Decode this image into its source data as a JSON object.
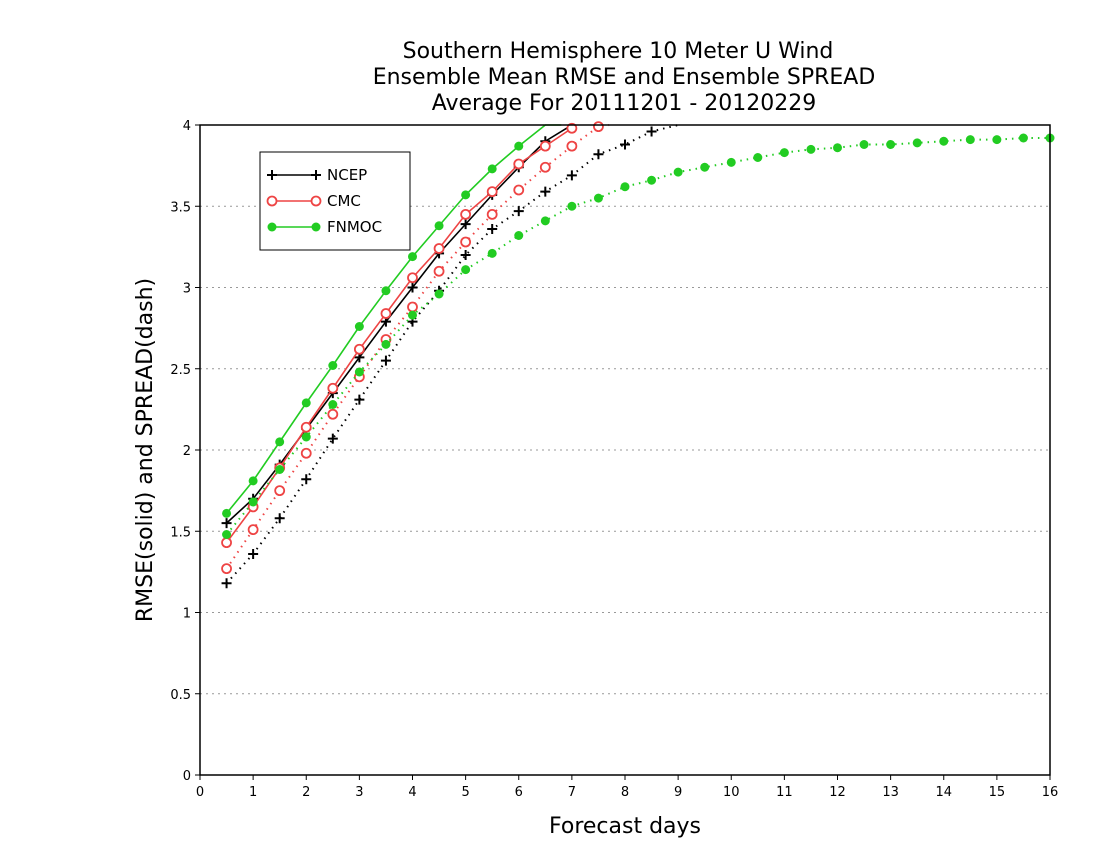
{
  "chart_data": {
    "type": "line",
    "title": [
      "Southern Hemisphere 10 Meter U Wind",
      "Ensemble Mean RMSE and Ensemble SPREAD",
      "Average For 20111201 - 20120229"
    ],
    "xlabel": "Forecast days",
    "ylabel": "RMSE(solid) and SPREAD(dash)",
    "xlim": [
      0,
      16
    ],
    "ylim": [
      0,
      4
    ],
    "xticks": [
      "0",
      "1",
      "2",
      "3",
      "4",
      "5",
      "6",
      "7",
      "8",
      "9",
      "10",
      "11",
      "12",
      "13",
      "14",
      "15",
      "16"
    ],
    "yticks": [
      "0",
      "0.5",
      "1",
      "1.5",
      "2",
      "2.5",
      "3",
      "3.5",
      "4"
    ],
    "grid": "horizontal dotted",
    "legend_position": "top-left",
    "series": [
      {
        "name": "NCEP",
        "color": "#000000",
        "marker": "plus",
        "rmse": {
          "x": [
            0.5,
            1,
            1.5,
            2,
            2.5,
            3,
            3.5,
            4,
            4.5,
            5,
            5.5,
            6,
            6.5,
            7
          ],
          "y": [
            1.55,
            1.7,
            1.91,
            2.13,
            2.35,
            2.57,
            2.79,
            3.0,
            3.21,
            3.39,
            3.57,
            3.74,
            3.9,
            4.0
          ]
        },
        "spread": {
          "x": [
            0.5,
            1,
            1.5,
            2,
            2.5,
            3,
            3.5,
            4,
            4.5,
            5,
            5.5,
            6,
            6.5,
            7,
            7.5,
            8,
            8.5,
            9
          ],
          "y": [
            1.18,
            1.36,
            1.58,
            1.82,
            2.07,
            2.31,
            2.55,
            2.79,
            2.98,
            3.2,
            3.36,
            3.47,
            3.59,
            3.69,
            3.82,
            3.88,
            3.96,
            4.0
          ]
        }
      },
      {
        "name": "CMC",
        "color": "#ee4444",
        "marker": "circle-open",
        "rmse": {
          "x": [
            0.5,
            1,
            1.5,
            2,
            2.5,
            3,
            3.5,
            4,
            4.5,
            5,
            5.5,
            6,
            6.5,
            7
          ],
          "y": [
            1.43,
            1.65,
            1.89,
            2.14,
            2.38,
            2.62,
            2.84,
            3.06,
            3.24,
            3.45,
            3.59,
            3.76,
            3.87,
            3.98
          ]
        },
        "spread": {
          "x": [
            0.5,
            1,
            1.5,
            2,
            2.5,
            3,
            3.5,
            4,
            4.5,
            5,
            5.5,
            6,
            6.5,
            7,
            7.5,
            7.7
          ],
          "y": [
            1.27,
            1.51,
            1.75,
            1.98,
            2.22,
            2.45,
            2.68,
            2.88,
            3.1,
            3.28,
            3.45,
            3.6,
            3.74,
            3.87,
            3.99,
            4.0
          ]
        }
      },
      {
        "name": "FNMOC",
        "color": "#22cc22",
        "marker": "dot",
        "rmse": {
          "x": [
            0.5,
            1,
            1.5,
            2,
            2.5,
            3,
            3.5,
            4,
            4.5,
            5,
            5.5,
            6,
            6.5,
            6.8
          ],
          "y": [
            1.61,
            1.81,
            2.05,
            2.29,
            2.52,
            2.76,
            2.98,
            3.19,
            3.38,
            3.57,
            3.73,
            3.87,
            4.0,
            4.0
          ]
        },
        "spread": {
          "x": [
            0.5,
            1,
            1.5,
            2,
            2.5,
            3,
            3.5,
            4,
            4.5,
            5,
            5.5,
            6,
            6.5,
            7,
            7.5,
            8,
            8.5,
            9,
            9.5,
            10,
            10.5,
            11,
            11.5,
            12,
            12.5,
            13,
            13.5,
            14,
            14.5,
            15,
            15.5,
            16
          ],
          "y": [
            1.48,
            1.68,
            1.88,
            2.08,
            2.28,
            2.48,
            2.65,
            2.83,
            2.96,
            3.11,
            3.21,
            3.32,
            3.41,
            3.5,
            3.55,
            3.62,
            3.66,
            3.71,
            3.74,
            3.77,
            3.8,
            3.83,
            3.85,
            3.86,
            3.88,
            3.88,
            3.89,
            3.9,
            3.91,
            3.91,
            3.92,
            3.92
          ]
        }
      }
    ]
  }
}
